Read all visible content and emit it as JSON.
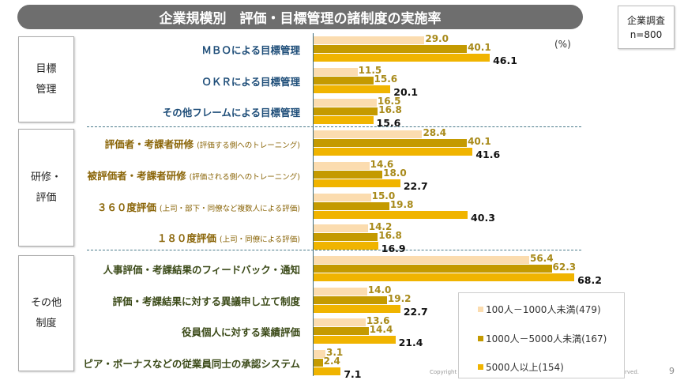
{
  "title": "企業規模別　評価・目標管理の諸制度の実施率",
  "survey": {
    "line1": "企業調査",
    "line2": "n=800"
  },
  "unit": "(%)",
  "groups": [
    {
      "line1": "目標",
      "line2": "管理",
      "color": "#1f4e79"
    },
    {
      "line1": "研修・",
      "line2": "評価",
      "color": "#8a6508"
    },
    {
      "line1": "その他",
      "line2": "制度",
      "color": "#3b4a18"
    }
  ],
  "colors": {
    "series": [
      "#fbdcaf",
      "#c49a00",
      "#f0b400"
    ],
    "value_label": [
      "#a88a1a",
      "#a88a1a",
      "#111111"
    ]
  },
  "chart_data": {
    "type": "bar",
    "orientation": "horizontal",
    "title": "企業規模別　評価・目標管理の諸制度の実施率",
    "unit": "%",
    "categories": [
      {
        "label": "ＭＢＯによる目標管理",
        "note": "",
        "group": 0
      },
      {
        "label": "ＯＫＲによる目標管理",
        "note": "",
        "group": 0
      },
      {
        "label": "その他フレームによる目標管理",
        "note": "",
        "group": 0
      },
      {
        "label": "評価者・考課者研修",
        "note": "(評価する側へのトレーニング)",
        "group": 1
      },
      {
        "label": "被評価者・考課者研修",
        "note": "(評価される側へのトレーニング)",
        "group": 1
      },
      {
        "label": "３６０度評価",
        "note": "(上司・部下・同僚など複数人による評価)",
        "group": 1
      },
      {
        "label": "１８０度評価",
        "note": "(上司・同僚による評価)",
        "group": 1
      },
      {
        "label": "人事評価・考課結果のフィードバック・通知",
        "note": "",
        "group": 2
      },
      {
        "label": "評価・考課結果に対する異議申し立て制度",
        "note": "",
        "group": 2
      },
      {
        "label": "役員個人に対する業績評価",
        "note": "",
        "group": 2
      },
      {
        "label": "ピア・ボーナスなどの従業員同士の承認システム",
        "note": "",
        "group": 2
      }
    ],
    "series": [
      {
        "name": "100人－1000人未満(479)",
        "values": [
          29.0,
          11.5,
          16.5,
          28.4,
          14.6,
          15.0,
          14.2,
          56.4,
          14.0,
          13.6,
          3.1
        ]
      },
      {
        "name": "1000人－5000人未満(167)",
        "values": [
          40.1,
          15.6,
          16.8,
          40.1,
          18.0,
          19.8,
          16.8,
          62.3,
          19.2,
          14.4,
          2.4
        ]
      },
      {
        "name": "5000人以上(154)",
        "values": [
          46.1,
          20.1,
          15.6,
          41.6,
          22.7,
          40.3,
          16.9,
          68.2,
          22.7,
          21.4,
          7.1
        ]
      }
    ],
    "xlim": [
      0,
      100
    ],
    "legend": "bottom-right"
  },
  "footer": {
    "copyright_left": "Copyright ©",
    "copyright_right": "rved.",
    "page": "9"
  }
}
